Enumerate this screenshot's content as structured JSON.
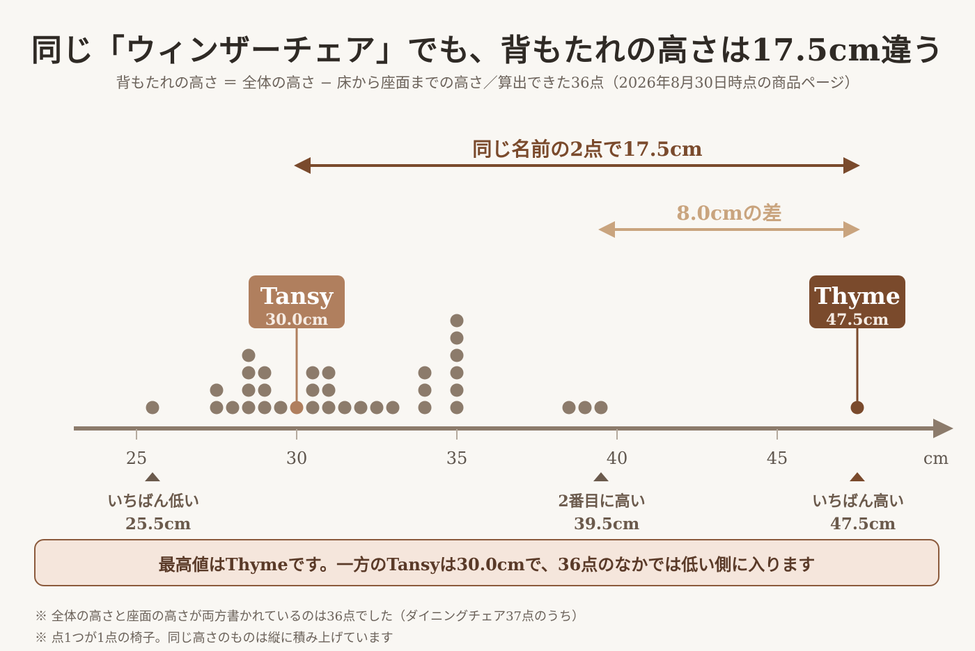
{
  "title": "同じ「ウィンザーチェア」でも、背もたれの高さは17.5cm違う",
  "subtitle": "背もたれの高さ ＝ 全体の高さ − 床から座面までの高さ／算出できた36点（2026年8月30日時点の商品ページ）",
  "colors": {
    "dot": "#8c7b6b",
    "axis": "#8c7b6b",
    "tansy": "#b07f5e",
    "thyme": "#7a4a2c",
    "range_arrow": "#7a4a2c",
    "diff_arrow": "#c9a47e",
    "marker": "#6b5a4c",
    "marker_high": "#7a4a2c",
    "summary_bg": "#f5e6dc",
    "summary_border": "#8b5a3c"
  },
  "chart_data": {
    "type": "scatter",
    "subtype": "dot-plot",
    "xlabel": "cm",
    "xlim": [
      23.5,
      50.5
    ],
    "x_ticks": [
      25,
      30,
      35,
      40,
      45
    ],
    "x_tick_labels": [
      "25",
      "30",
      "35",
      "40",
      "45"
    ],
    "grid": false,
    "values": [
      25.5,
      27.5,
      27.5,
      28.0,
      28.5,
      28.5,
      28.5,
      28.5,
      29.0,
      29.0,
      29.0,
      29.5,
      30.0,
      30.5,
      30.5,
      30.5,
      31.0,
      31.0,
      31.0,
      31.5,
      32.0,
      32.5,
      33.0,
      34.0,
      34.0,
      34.0,
      35.0,
      35.0,
      35.0,
      35.0,
      35.0,
      35.0,
      38.5,
      39.0,
      39.5,
      47.5
    ],
    "highlights": [
      {
        "name": "Tansy",
        "value": 30.0,
        "label": "30.0cm",
        "color_key": "tansy"
      },
      {
        "name": "Thyme",
        "value": 47.5,
        "label": "47.5cm",
        "color_key": "thyme"
      }
    ],
    "range_annotations": [
      {
        "label": "同じ名前の2点で17.5cm",
        "from": 30.0,
        "to": 47.5,
        "color_key": "range_arrow"
      },
      {
        "label": "8.0cmの差",
        "from": 39.5,
        "to": 47.5,
        "color_key": "diff_arrow"
      }
    ],
    "markers": [
      {
        "value": 25.5,
        "line1": "いちばん低い",
        "line2": "25.5cm",
        "color_key": "marker"
      },
      {
        "value": 39.5,
        "line1": "2番目に高い",
        "line2": "39.5cm",
        "color_key": "marker"
      },
      {
        "value": 47.5,
        "line1": "いちばん高い",
        "line2": "47.5cm",
        "color_key": "marker_high"
      }
    ]
  },
  "summary": "最高値はThymeです。一方のTansyは30.0cmで、36点のなかでは低い側に入ります",
  "notes": [
    "※ 全体の高さと座面の高さが両方書かれているのは36点でした（ダイニングチェア37点のうち）",
    "※ 点1つが1点の椅子。同じ高さのものは縦に積み上げています"
  ]
}
